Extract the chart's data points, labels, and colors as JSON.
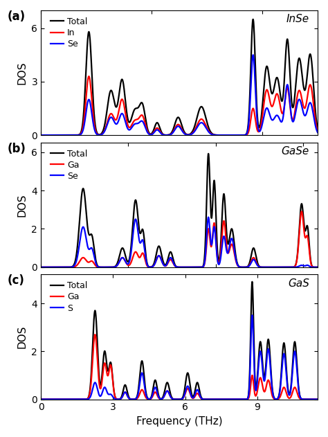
{
  "panels": [
    {
      "label": "(a)",
      "compound": "InSe",
      "legend": [
        "Total",
        "In",
        "Se"
      ],
      "colors": [
        "black",
        "red",
        "blue"
      ],
      "xlim": [
        0,
        7.5
      ],
      "ylim": [
        0,
        7.0
      ],
      "yticks": [
        0,
        3,
        6
      ],
      "xticks": [
        0,
        3,
        6
      ],
      "xticklabels": [
        "0",
        "3",
        "6"
      ]
    },
    {
      "label": "(b)",
      "compound": "GaSe",
      "legend": [
        "Total",
        "Ga",
        "Se"
      ],
      "colors": [
        "black",
        "red",
        "blue"
      ],
      "xlim": [
        0,
        9.5
      ],
      "ylim": [
        0,
        6.5
      ],
      "yticks": [
        0,
        2,
        4,
        6
      ],
      "xticks": [
        0,
        3,
        6,
        9
      ],
      "xticklabels": [
        "0",
        "3",
        "6",
        "9"
      ]
    },
    {
      "label": "(c)",
      "compound": "GaS",
      "legend": [
        "Total",
        "Ga",
        "S"
      ],
      "colors": [
        "black",
        "red",
        "blue"
      ],
      "xlim": [
        0,
        11.5
      ],
      "ylim": [
        0,
        5.2
      ],
      "yticks": [
        0,
        2,
        4
      ],
      "xticks": [
        0,
        3,
        6,
        9
      ],
      "xticklabels": [
        "0",
        "3",
        "6",
        "9"
      ]
    }
  ],
  "xlabel": "Frequency (THz)",
  "ylabel": "DOS",
  "background_color": "white",
  "linewidth": 1.6
}
